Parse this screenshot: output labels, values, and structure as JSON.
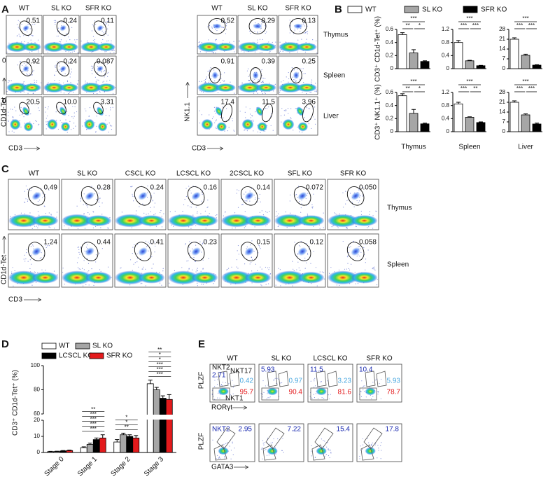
{
  "panel_labels": [
    "A",
    "B",
    "C",
    "D",
    "E"
  ],
  "panel_a": {
    "tissues": [
      "Thymus",
      "Spleen",
      "Liver"
    ],
    "axis_zero": "0",
    "left": {
      "columns": [
        "WT",
        "SL KO",
        "SFR KO"
      ],
      "rows": [
        [
          "0.51",
          "0.24",
          "0.11"
        ],
        [
          "0.92",
          "0.24",
          "0.087"
        ],
        [
          "20.5",
          "10.0",
          "3.31"
        ]
      ],
      "y_axis": "CD1d-Tet",
      "x_axis": "CD3"
    },
    "right": {
      "columns": [
        "WT",
        "SL KO",
        "SFR KO"
      ],
      "rows": [
        [
          "0.52",
          "0.29",
          "0.13"
        ],
        [
          "0.91",
          "0.39",
          "0.25"
        ],
        [
          "17.4",
          "11.5",
          "3.96"
        ]
      ],
      "y_axis": "NK1.1",
      "x_axis": "CD3"
    }
  },
  "panel_b": {
    "legend": [
      {
        "name": "WT",
        "color": "#ffffff"
      },
      {
        "name": "SL KO",
        "color": "#a6a6a6"
      },
      {
        "name": "SFR KO",
        "color": "#000000"
      }
    ]
  },
  "panel_c": {
    "columns": [
      "WT",
      "SL KO",
      "CSCL KO",
      "LCSCL KO",
      "2CSCL KO",
      "SFL KO",
      "SFR KO"
    ],
    "tissues": [
      "Thymus",
      "Spleen"
    ],
    "rows": [
      [
        "0.49",
        "0.28",
        "0.24",
        "0.16",
        "0.14",
        "0.072",
        "0.050"
      ],
      [
        "1.24",
        "0.44",
        "0.41",
        "0.23",
        "0.15",
        "0.12",
        "0.058"
      ]
    ],
    "y_axis": "CD1d-Tet",
    "x_axis": "CD3"
  },
  "panel_e": {
    "columns": [
      "WT",
      "SL KO",
      "LCSCL KO",
      "SFR KO"
    ],
    "rorgt": {
      "labels": [
        "NKT2",
        "NKT17",
        "NKT1"
      ],
      "nkt2": [
        "2.71",
        "5.93",
        "11.5",
        "10.4"
      ],
      "nkt17": [
        "0.42",
        "0.97",
        "3.23",
        "5.93"
      ],
      "nkt1": [
        "95.7",
        "90.4",
        "81.6",
        "78.7"
      ],
      "y_axis": "PLZF",
      "x_axis": "RORγt"
    },
    "gata3": {
      "label": "NKT2",
      "nkt2": [
        "2.95",
        "7.22",
        "15.4",
        "17.8"
      ],
      "y_axis": "PLZF",
      "x_axis": "GATA3"
    }
  },
  "chart_data": [
    {
      "type": "bar",
      "ylabel": "CD3⁺ CD1d-Tet⁺ (%)",
      "values": [
        0.52,
        0.24,
        0.11
      ],
      "errors": [
        0.03,
        0.05,
        0.01
      ],
      "ylim": [
        0,
        0.6
      ],
      "yticks": [
        0,
        0.2,
        0.4,
        0.6
      ],
      "significance": [
        "***",
        "**",
        "*"
      ]
    },
    {
      "type": "bar",
      "values": [
        0.8,
        0.24,
        0.09
      ],
      "errors": [
        0.06,
        0.015,
        0.01
      ],
      "ylim": [
        0,
        1.2
      ],
      "yticks": [
        0,
        0.4,
        0.8,
        1.2
      ],
      "significance": [
        "***",
        "***",
        "***"
      ]
    },
    {
      "type": "bar",
      "values": [
        21,
        9.5,
        2.5
      ],
      "errors": [
        1,
        0.8,
        0.3
      ],
      "ylim": [
        0,
        28
      ],
      "yticks": [
        0,
        7,
        14,
        21,
        28
      ],
      "significance": [
        "***",
        "***",
        "***"
      ]
    },
    {
      "type": "bar",
      "ylabel": "CD3⁺ NK1.1⁺ (%)",
      "xlabel": "Thymus",
      "values": [
        0.55,
        0.28,
        0.12
      ],
      "errors": [
        0.03,
        0.06,
        0.01
      ],
      "ylim": [
        0,
        0.6
      ],
      "yticks": [
        0,
        0.2,
        0.4,
        0.6
      ],
      "significance": [
        "***",
        "**",
        "*"
      ]
    },
    {
      "type": "bar",
      "xlabel": "Spleen",
      "values": [
        0.85,
        0.44,
        0.28
      ],
      "errors": [
        0.05,
        0.015,
        0.02
      ],
      "ylim": [
        0,
        1.2
      ],
      "yticks": [
        0,
        0.4,
        0.8,
        1.2
      ],
      "significance": [
        "***",
        "***",
        "**"
      ]
    },
    {
      "type": "bar",
      "xlabel": "Liver",
      "values": [
        21,
        12,
        5.5
      ],
      "errors": [
        1,
        0.7,
        0.6
      ],
      "ylim": [
        0,
        28
      ],
      "yticks": [
        0,
        7,
        14,
        21,
        28
      ],
      "significance": [
        "***",
        "***",
        "***"
      ]
    },
    {
      "type": "bar",
      "ylabel": "CD3⁺ CD1d-Tet⁺ (%)",
      "categories": [
        "Stage 0",
        "Stage 1",
        "Stage 2",
        "Stage 3"
      ],
      "series": [
        {
          "name": "WT",
          "color": "#ffffff",
          "values": [
            0.5,
            3,
            6.5,
            85
          ],
          "errors": [
            0.2,
            0.5,
            1.5,
            3
          ]
        },
        {
          "name": "SL KO",
          "color": "#a6a6a6",
          "values": [
            0.6,
            5,
            11,
            80
          ],
          "errors": [
            0.2,
            0.8,
            1,
            2
          ]
        },
        {
          "name": "LCSCL KO",
          "color": "#000000",
          "values": [
            1,
            8,
            10,
            73
          ],
          "errors": [
            0.2,
            1,
            1,
            2
          ]
        },
        {
          "name": "SFR KO",
          "color": "#e31a1c",
          "values": [
            1.2,
            9,
            9,
            72
          ],
          "errors": [
            0.3,
            2,
            1.5,
            4
          ]
        }
      ],
      "ylim": [
        0,
        100
      ],
      "axis_break": [
        20,
        60
      ],
      "yticks": [
        0,
        10,
        20,
        60,
        80,
        100
      ],
      "significance": [
        [],
        [
          "***",
          "***",
          "***",
          "***",
          "**"
        ],
        [
          "**",
          "*",
          "*"
        ],
        [
          "***",
          "***",
          "***",
          "*",
          "*",
          "**"
        ]
      ]
    }
  ]
}
